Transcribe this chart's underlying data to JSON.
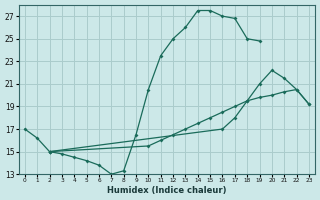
{
  "xlabel": "Humidex (Indice chaleur)",
  "bg_color": "#cce8e8",
  "grid_color": "#aacccc",
  "line_color": "#1a6b5a",
  "xlim": [
    -0.5,
    23.5
  ],
  "ylim": [
    13,
    28
  ],
  "yticks": [
    13,
    15,
    17,
    19,
    21,
    23,
    25,
    27
  ],
  "xticks": [
    0,
    1,
    2,
    3,
    4,
    5,
    6,
    7,
    8,
    9,
    10,
    11,
    12,
    13,
    14,
    15,
    16,
    17,
    18,
    19,
    20,
    21,
    22,
    23
  ],
  "line1_x": [
    0,
    1,
    2,
    3,
    4,
    5,
    6,
    7,
    8,
    9,
    10,
    11,
    12,
    13,
    14,
    15,
    16,
    17,
    18,
    19
  ],
  "line1_y": [
    17.0,
    16.2,
    15.0,
    14.8,
    14.5,
    14.2,
    13.8,
    13.0,
    13.3,
    16.5,
    20.5,
    23.5,
    25.0,
    26.0,
    27.5,
    27.5,
    27.0,
    26.8,
    25.0,
    24.8
  ],
  "line2_x": [
    2,
    10,
    11,
    12,
    13,
    14,
    15,
    16,
    17,
    18,
    19,
    20,
    21,
    22,
    23
  ],
  "line2_y": [
    15.0,
    15.5,
    16.0,
    16.5,
    17.0,
    17.5,
    18.0,
    18.5,
    19.0,
    19.5,
    19.8,
    20.0,
    20.3,
    20.5,
    19.2
  ],
  "line3_x": [
    2,
    16,
    17,
    18,
    19,
    20,
    21,
    22,
    23
  ],
  "line3_y": [
    15.0,
    17.0,
    18.0,
    19.5,
    21.0,
    22.2,
    21.5,
    20.5,
    19.2
  ]
}
